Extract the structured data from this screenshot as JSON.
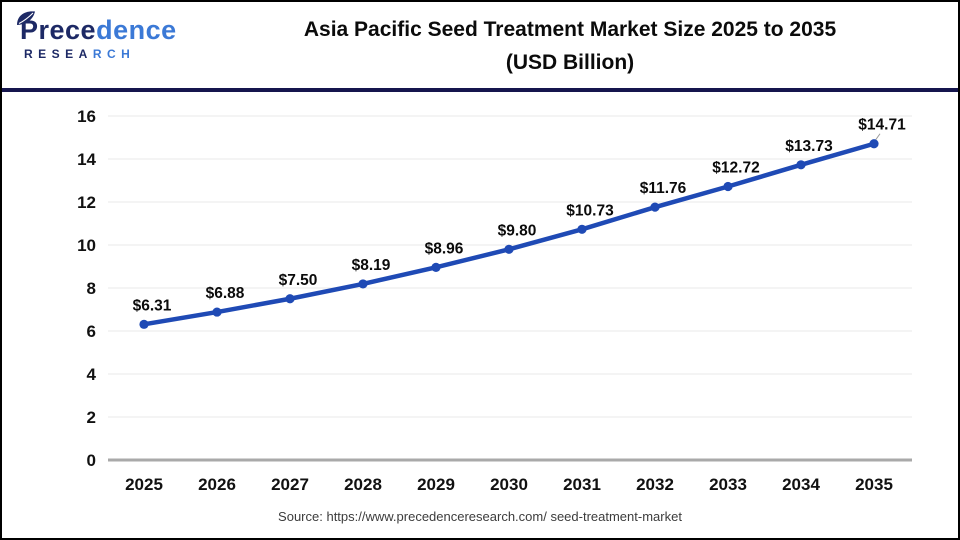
{
  "header": {
    "logo": {
      "brand_part_dark": "Prece",
      "brand_part_light": "dence",
      "sub_part_dark": "RESEA",
      "sub_part_light": "RCH"
    },
    "title_line1": "Asia Pacific Seed Treatment Market Size 2025 to 2035",
    "title_line2": "(USD Billion)"
  },
  "footer": {
    "source_text": "Source: https://www.precedenceresearch.com/ seed-treatment-market"
  },
  "colors": {
    "line": "#1f4ab5",
    "marker": "#1f4ab5",
    "grid": "#f0f0f0",
    "axis": "#a9a9a9",
    "tick_text": "#111111",
    "data_label": "#0b0b0b",
    "divider": "#15154d",
    "leader": "#999999",
    "brand_dark": "#1d2965",
    "brand_light": "#3b79d6"
  },
  "chart_data": {
    "type": "line",
    "title": "Asia Pacific Seed Treatment Market Size 2025 to 2035 (USD Billion)",
    "xlabel": "",
    "ylabel": "",
    "categories": [
      "2025",
      "2026",
      "2027",
      "2028",
      "2029",
      "2030",
      "2031",
      "2032",
      "2033",
      "2034",
      "2035"
    ],
    "values": [
      6.31,
      6.88,
      7.5,
      8.19,
      8.96,
      9.8,
      10.73,
      11.76,
      12.72,
      13.73,
      14.71
    ],
    "point_labels": [
      "$6.31",
      "$6.88",
      "$7.50",
      "$8.19",
      "$8.96",
      "$9.80",
      "$10.73",
      "$11.76",
      "$12.72",
      "$13.73",
      "$14.71"
    ],
    "ylim": [
      0,
      16
    ],
    "ytick_step": 2,
    "grid": true,
    "legend": false
  }
}
